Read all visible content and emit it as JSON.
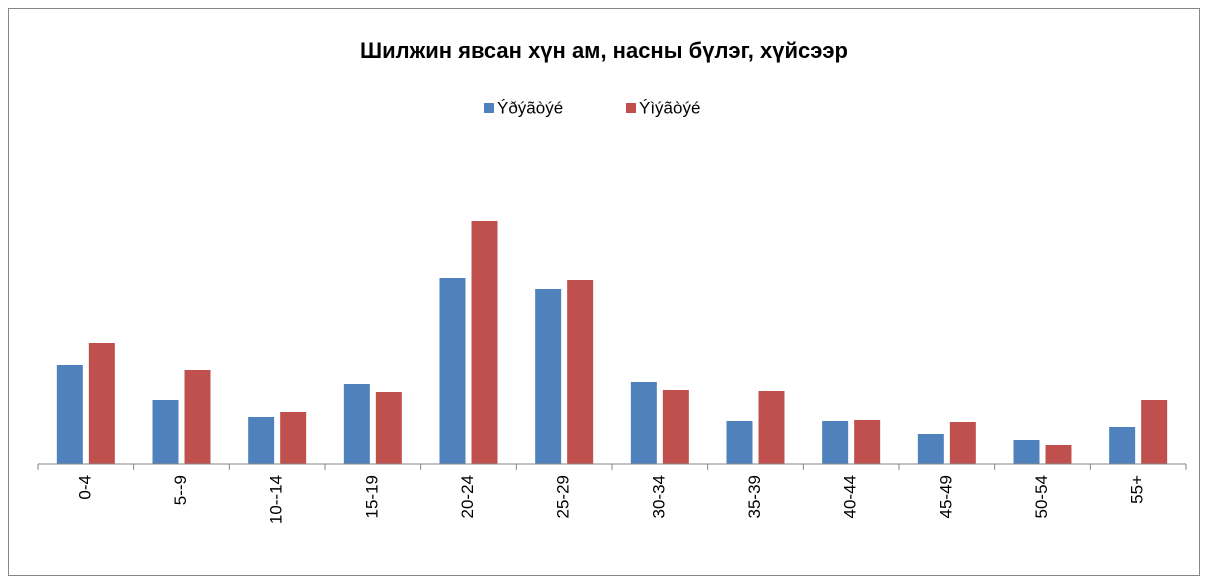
{
  "chart_data": {
    "type": "bar",
    "title": "Шилжин явсан хүн ам, насны бүлэг, хүйсээр",
    "categories": [
      "0-4",
      "5--9",
      "10--14",
      "15-19",
      "20-24",
      "25-29",
      "30-34",
      "35-39",
      "40-44",
      "45-49",
      "50-54",
      "55+"
    ],
    "series": [
      {
        "name": "Ýðýãòýé",
        "color": "#4f81bd",
        "values": [
          99,
          64,
          47,
          80,
          186,
          175,
          82,
          43,
          43,
          30,
          24,
          37
        ]
      },
      {
        "name": "Ýìýãòýé",
        "color": "#c0504d",
        "values": [
          121,
          94,
          52,
          72,
          243,
          184,
          74,
          73,
          44,
          42,
          19,
          64
        ]
      }
    ],
    "ylim": [
      0,
      300
    ]
  }
}
